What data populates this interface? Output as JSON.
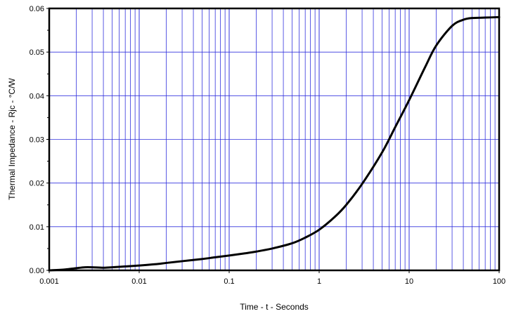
{
  "chart_data": {
    "type": "line",
    "title": "",
    "xlabel": "Time - t - Seconds",
    "ylabel": "Thermal Impedance - Rjc - °C/W",
    "x_scale": "log",
    "xlim": [
      0.001,
      100
    ],
    "ylim": [
      0,
      0.06
    ],
    "x_ticks": [
      {
        "value": 0.001,
        "label": "0.001"
      },
      {
        "value": 0.01,
        "label": "0.01"
      },
      {
        "value": 0.1,
        "label": "0.1"
      },
      {
        "value": 1,
        "label": "1"
      },
      {
        "value": 10,
        "label": "10"
      },
      {
        "value": 100,
        "label": "100"
      }
    ],
    "y_ticks": [
      {
        "value": 0,
        "label": "0.00"
      },
      {
        "value": 0.01,
        "label": "0.01"
      },
      {
        "value": 0.02,
        "label": "0.02"
      },
      {
        "value": 0.03,
        "label": "0.03"
      },
      {
        "value": 0.04,
        "label": "0.04"
      },
      {
        "value": 0.05,
        "label": "0.05"
      },
      {
        "value": 0.06,
        "label": "0.06"
      }
    ],
    "grid": true,
    "colors": {
      "grid": "#3333dd",
      "line": "#000000",
      "frame": "#000000"
    },
    "series": [
      {
        "x": [
          0.001,
          0.0015,
          0.002,
          0.0025,
          0.003,
          0.004,
          0.005,
          0.007,
          0.01,
          0.015,
          0.02,
          0.03,
          0.05,
          0.07,
          0.1,
          0.15,
          0.2,
          0.3,
          0.5,
          0.7,
          1,
          1.5,
          2,
          3,
          5,
          7,
          10,
          15,
          20,
          30,
          40,
          50,
          70,
          100
        ],
        "y": [
          0.0,
          0.0002,
          0.0005,
          0.0007,
          0.0007,
          0.0006,
          0.0007,
          0.0009,
          0.0011,
          0.0014,
          0.0017,
          0.0021,
          0.0026,
          0.003,
          0.0034,
          0.0039,
          0.0043,
          0.005,
          0.0062,
          0.0075,
          0.0093,
          0.0123,
          0.015,
          0.0198,
          0.027,
          0.0328,
          0.039,
          0.0465,
          0.0515,
          0.056,
          0.0574,
          0.0578,
          0.0579,
          0.058
        ]
      }
    ]
  }
}
